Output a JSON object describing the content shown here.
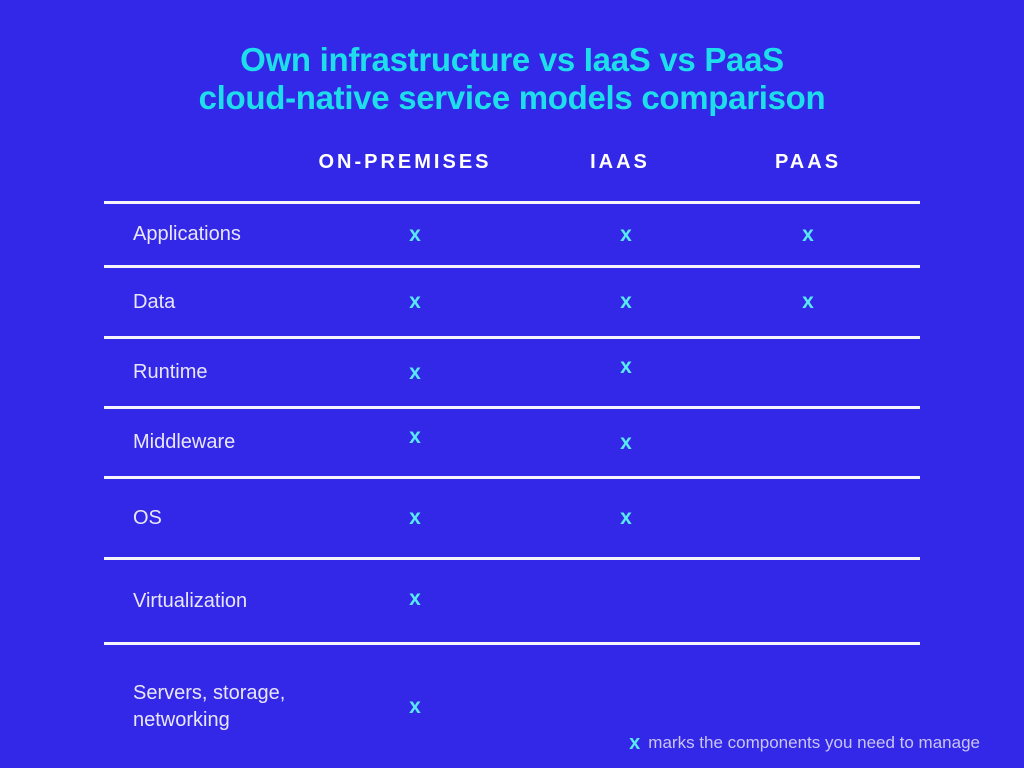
{
  "title": {
    "line1": "Own infrastructure vs IaaS vs PaaS",
    "line2": "cloud-native service models comparison"
  },
  "chart_data": {
    "type": "table",
    "title": "Own infrastructure vs IaaS vs PaaS cloud-native service models comparison",
    "columns": [
      "ON-PREMISES",
      "IAAS",
      "PAAS"
    ],
    "rows": [
      "Applications",
      "Data",
      "Runtime",
      "Middleware",
      "OS",
      "Virtualization",
      "Servers, storage, networking"
    ],
    "managed_matrix": [
      [
        true,
        true,
        true
      ],
      [
        true,
        true,
        true
      ],
      [
        true,
        true,
        false
      ],
      [
        true,
        true,
        false
      ],
      [
        true,
        true,
        false
      ],
      [
        true,
        false,
        false
      ],
      [
        true,
        false,
        false
      ]
    ],
    "mark_glyph": "x",
    "legend_mark": "x",
    "legend_text": "marks the components you need to manage",
    "layout_hints": {
      "grid": "horizontal separator lines between rows",
      "legend_position": "bottom-right"
    }
  },
  "colors": {
    "background": "#3328E8",
    "title": "#1DDEEA",
    "mark": "#59E9F4",
    "header_text": "#FFFFFF",
    "row_label": "#E9E6FB",
    "separator_line": "#F5F4FD",
    "footnote_text": "#C9C5F2"
  }
}
